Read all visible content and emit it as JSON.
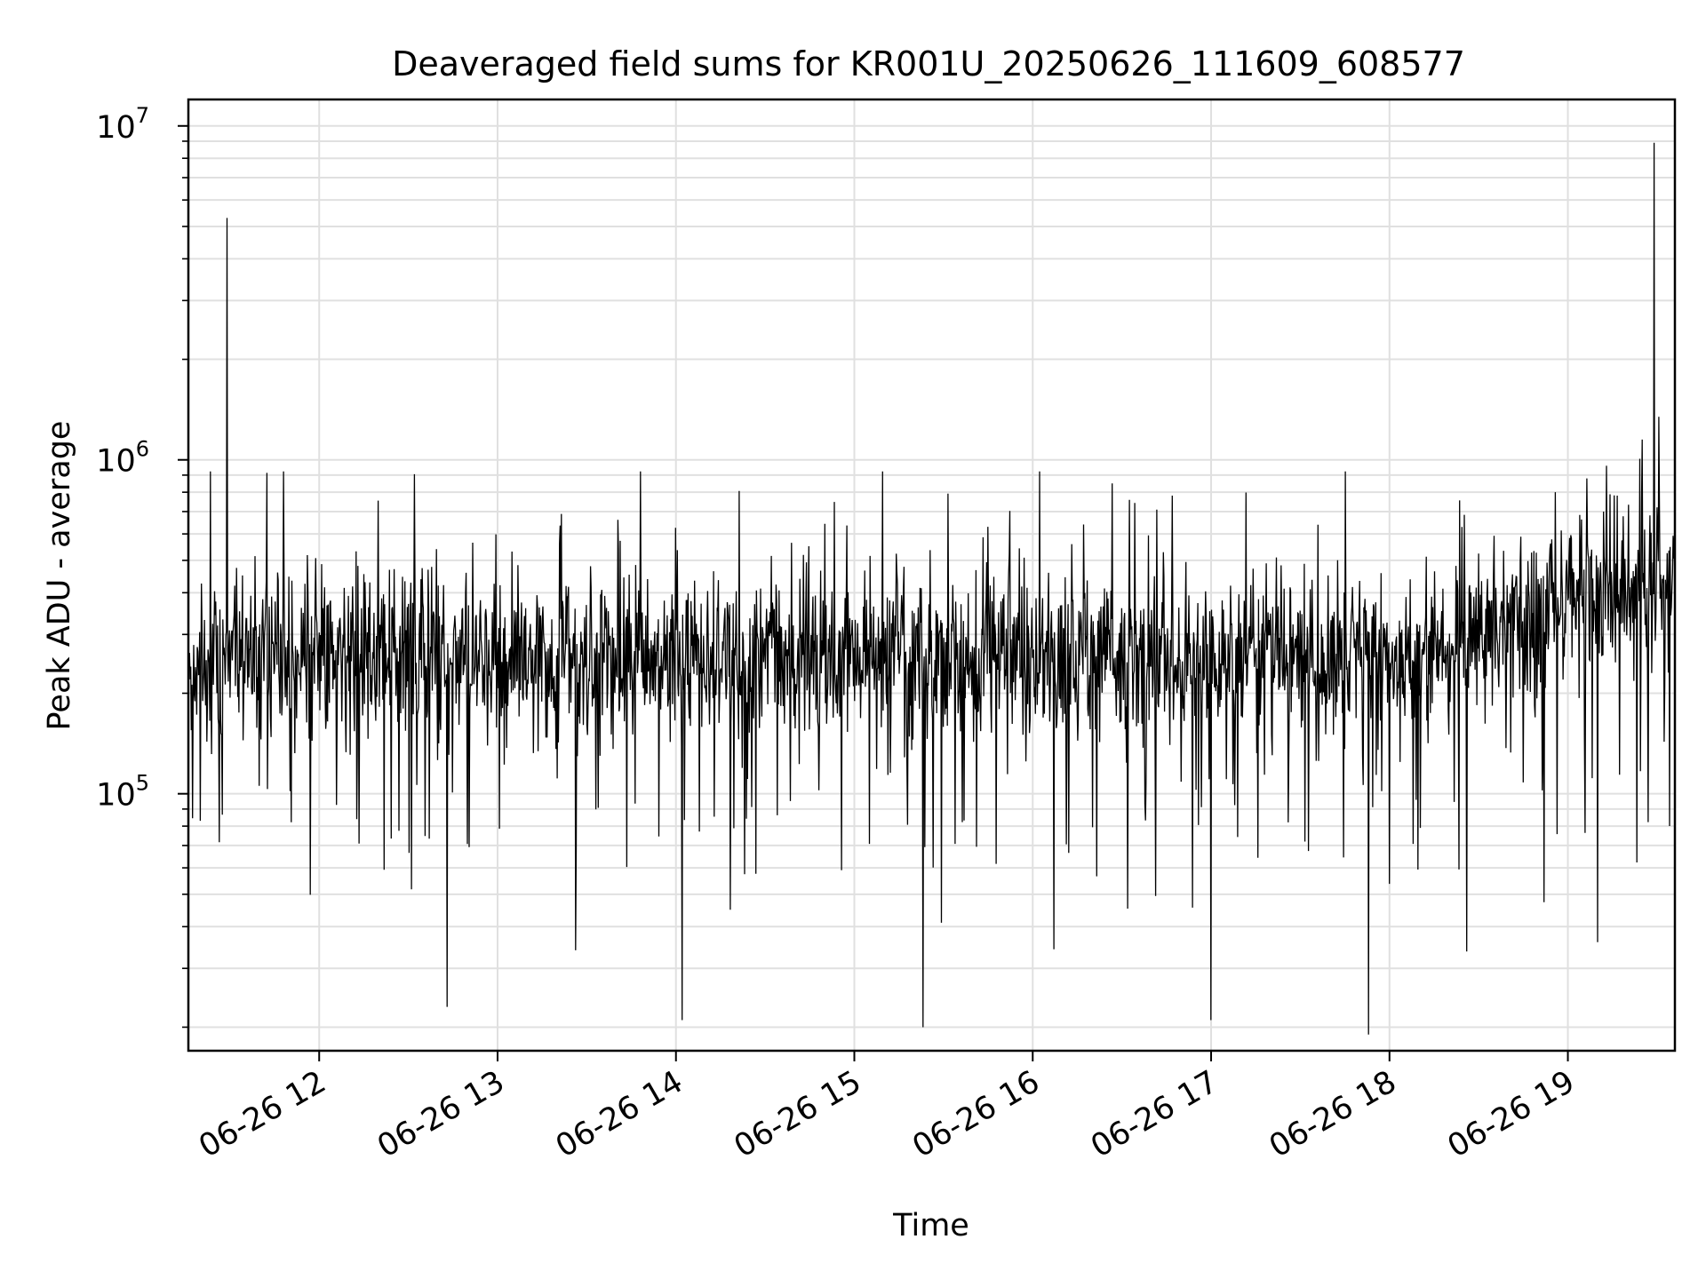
{
  "chart_data": {
    "type": "line",
    "title": "Deaveraged field sums for KR001U_20250626_111609_608577",
    "xlabel": "Time",
    "ylabel": "Peak ADU - average",
    "x_ticks": [
      "06-26 12",
      "06-26 13",
      "06-26 14",
      "06-26 15",
      "06-26 16",
      "06-26 17",
      "06-26 18",
      "06-26 19"
    ],
    "y_ticks": [
      {
        "value": 100000,
        "base": "10",
        "exp": "5"
      },
      {
        "value": 1000000,
        "base": "10",
        "exp": "6"
      },
      {
        "value": 10000000,
        "base": "10",
        "exp": "7"
      }
    ],
    "xlim": [
      "2025-06-26 11:16",
      "2025-06-26 19:36"
    ],
    "ylim": [
      17000,
      12000000
    ],
    "y_scale": "log",
    "grid": true,
    "line_color": "#000000",
    "grid_color": "#e0e0e0",
    "series": [
      {
        "x_start": "2025-06-26 11:16",
        "x_end": "2025-06-26 19:36",
        "n_points": 2500,
        "median_value": 260000,
        "typical_range": [
          50000,
          700000
        ],
        "notable_points": [
          {
            "x": "2025-06-26 11:29",
            "y": 5300000
          },
          {
            "x": "2025-06-26 12:43",
            "y": 23000
          },
          {
            "x": "2025-06-26 14:02",
            "y": 21000
          },
          {
            "x": "2025-06-26 15:23",
            "y": 20000
          },
          {
            "x": "2025-06-26 17:00",
            "y": 21000
          },
          {
            "x": "2025-06-26 17:53",
            "y": 19000
          },
          {
            "x": "2025-06-26 19:13",
            "y": 960000
          },
          {
            "x": "2025-06-26 19:25",
            "y": 1150000
          },
          {
            "x": "2025-06-26 19:29",
            "y": 8900000
          }
        ]
      }
    ]
  }
}
